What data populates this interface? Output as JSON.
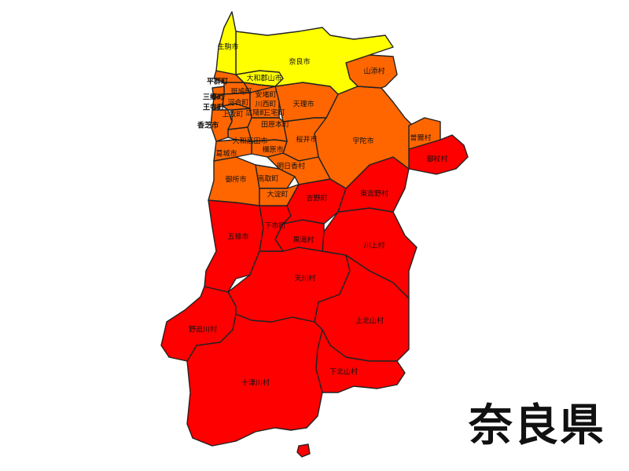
{
  "title": "奈良県",
  "colors": {
    "yellow": "#ffff00",
    "orange": "#ff6600",
    "red": "#ff0000",
    "border": "#222222"
  },
  "municipalities": {
    "nara": {
      "name": "奈良市",
      "color": "yellow"
    },
    "ikoma": {
      "name": "生駒市",
      "color": "yellow"
    },
    "yamatokoriyama": {
      "name": "大和郡山市",
      "color": "yellow"
    },
    "yamazoe": {
      "name": "山添村",
      "color": "orange"
    },
    "heguri": {
      "name": "平群町",
      "color": "orange"
    },
    "sango": {
      "name": "三郷町",
      "color": "orange"
    },
    "oji": {
      "name": "王寺町",
      "color": "orange"
    },
    "ikaruga": {
      "name": "斑鳩町",
      "color": "orange"
    },
    "ando": {
      "name": "安堵町",
      "color": "orange"
    },
    "kawai": {
      "name": "河合町",
      "color": "orange"
    },
    "kawanishi": {
      "name": "川西町",
      "color": "orange"
    },
    "tenri": {
      "name": "天理市",
      "color": "orange"
    },
    "kanmaki": {
      "name": "上牧町",
      "color": "orange"
    },
    "koryo": {
      "name": "広陵町",
      "color": "orange"
    },
    "miyake": {
      "name": "三宅町",
      "color": "orange"
    },
    "kashiba": {
      "name": "香芝市",
      "color": "orange"
    },
    "tawaramoto": {
      "name": "田原本町",
      "color": "orange"
    },
    "yamatotakada": {
      "name": "大和高田市",
      "color": "orange"
    },
    "katsuragi": {
      "name": "葛城市",
      "color": "orange"
    },
    "kashihara": {
      "name": "橿原市",
      "color": "orange"
    },
    "sakurai": {
      "name": "桜井市",
      "color": "orange"
    },
    "uda": {
      "name": "宇陀市",
      "color": "orange"
    },
    "soni": {
      "name": "曽爾村",
      "color": "orange"
    },
    "asuka": {
      "name": "明日香村",
      "color": "orange"
    },
    "gose": {
      "name": "御所市",
      "color": "orange"
    },
    "takatori": {
      "name": "高取町",
      "color": "orange"
    },
    "oyodo": {
      "name": "大淀町",
      "color": "orange"
    },
    "mitsue": {
      "name": "御杖村",
      "color": "red"
    },
    "higashiyoshino": {
      "name": "東吉野村",
      "color": "red"
    },
    "yoshino": {
      "name": "吉野町",
      "color": "red"
    },
    "shimoichi": {
      "name": "下市町",
      "color": "red"
    },
    "gojo": {
      "name": "五條市",
      "color": "red"
    },
    "kurotaki": {
      "name": "黒滝村",
      "color": "red"
    },
    "kawakami": {
      "name": "川上村",
      "color": "red"
    },
    "tenkawa": {
      "name": "天川村",
      "color": "red"
    },
    "nosegawa": {
      "name": "野迫川村",
      "color": "red"
    },
    "kamikitayama": {
      "name": "上北山村",
      "color": "red"
    },
    "totsukawa": {
      "name": "十津川村",
      "color": "red"
    },
    "shimokitayama": {
      "name": "下北山村",
      "color": "red"
    }
  }
}
